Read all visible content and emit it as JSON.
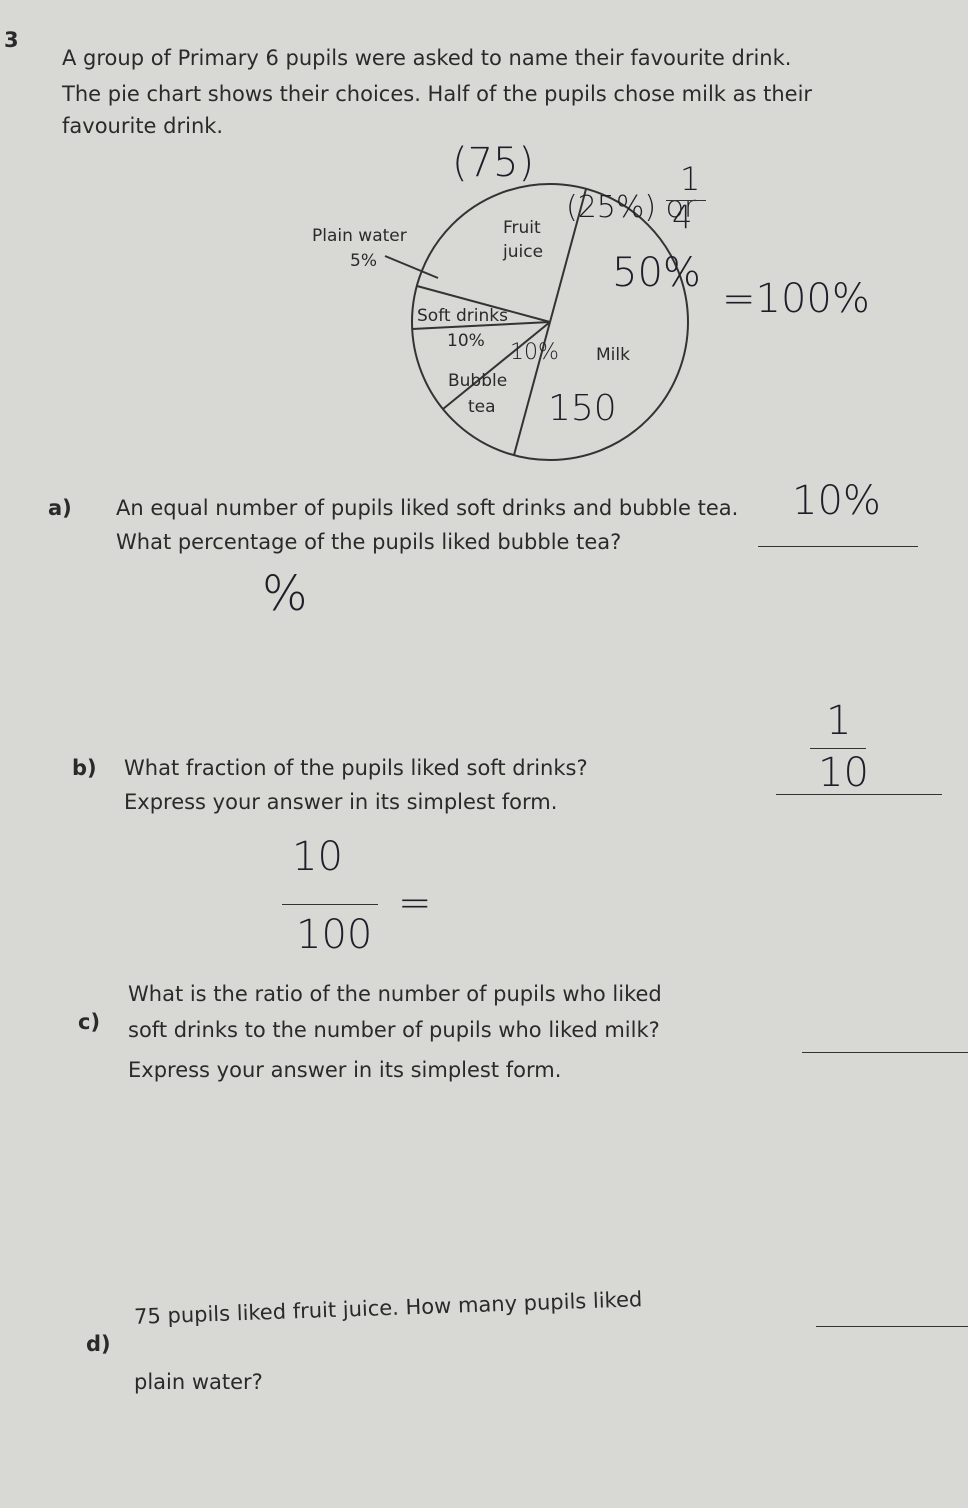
{
  "question_number": "3",
  "intro": [
    "A group of Primary 6 pupils were asked to name their favourite drink.",
    "The pie chart shows their choices. Half of the pupils chose milk as their",
    "favourite drink."
  ],
  "pie_labels": {
    "plain_water": "Plain water",
    "plain_water_pct": "5%",
    "fruit_juice": [
      "Fruit",
      "juice"
    ],
    "soft_drinks": "Soft drinks",
    "soft_drinks_pct": "10%",
    "bubble_tea": [
      "Bubble",
      "tea"
    ],
    "milk": "Milk"
  },
  "questions": [
    {
      "letter": "a)",
      "lines": [
        "An equal number of pupils liked soft drinks and bubble tea.",
        "What percentage of the pupils liked bubble tea?"
      ]
    },
    {
      "letter": "b)",
      "lines": [
        "What fraction of the pupils liked soft drinks?",
        "Express your answer in its simplest form."
      ]
    },
    {
      "letter": "c)",
      "lines": [
        "What is the ratio of the number of pupils who liked",
        "soft drinks to the number of pupils who liked milk?",
        "Express your answer in its simplest form."
      ]
    },
    {
      "letter": "d)",
      "lines": [
        "75 pupils liked fruit juice. How many pupils liked",
        "plain water?"
      ]
    }
  ],
  "handwriting": {
    "total": "(75)",
    "fruit_pct": "(25%) or",
    "fruit_frac_num": "1",
    "fruit_frac_den": "4",
    "milk_pct": "50%",
    "sum": "=100%",
    "bubble_pct": "10%",
    "milk_count": "150",
    "answer_a": "10%",
    "work_a": "%",
    "answer_b_num": "1",
    "answer_b_den": "10",
    "work_b_num": "10",
    "work_b_den": "100",
    "work_b_eq": "="
  }
}
